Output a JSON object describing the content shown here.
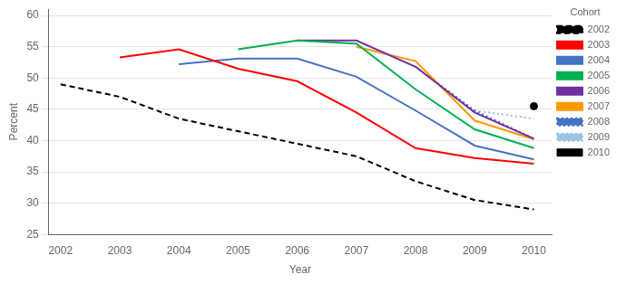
{
  "chart_data": {
    "type": "line",
    "xlabel": "Year",
    "ylabel": "Percent",
    "legend_title": "Cohort",
    "legend": "right",
    "grid": "y",
    "xlim": [
      2001.8,
      2010.3
    ],
    "ylim": [
      25,
      61
    ],
    "xticks": [
      2002,
      2003,
      2004,
      2005,
      2006,
      2007,
      2008,
      2009,
      2010
    ],
    "yticks": [
      25,
      30,
      35,
      40,
      45,
      50,
      55,
      60
    ],
    "series": [
      {
        "name": "2002",
        "color": "#000000",
        "line_style": "dashed",
        "x": [
          2002,
          2003,
          2004,
          2005,
          2006,
          2007,
          2008,
          2009,
          2010
        ],
        "values": [
          49.0,
          47.0,
          43.5,
          41.5,
          39.5,
          37.5,
          33.5,
          30.5,
          29.0
        ]
      },
      {
        "name": "2003",
        "color": "#ff0000",
        "line_style": "solid",
        "x": [
          2003,
          2004,
          2005,
          2006,
          2007,
          2008,
          2009,
          2010
        ],
        "values": [
          53.3,
          54.6,
          51.5,
          49.5,
          44.5,
          38.8,
          37.2,
          36.3
        ]
      },
      {
        "name": "2004",
        "color": "#4472c4",
        "line_style": "solid",
        "x": [
          2004,
          2005,
          2006,
          2007,
          2008,
          2009,
          2010
        ],
        "values": [
          52.2,
          53.1,
          53.1,
          50.2,
          44.8,
          39.2,
          37.0
        ]
      },
      {
        "name": "2005",
        "color": "#00b050",
        "line_style": "solid",
        "x": [
          2005,
          2006,
          2007,
          2008,
          2009,
          2010
        ],
        "values": [
          54.6,
          56.0,
          55.5,
          48.2,
          41.8,
          38.8
        ]
      },
      {
        "name": "2006",
        "color": "#7030a0",
        "line_style": "solid",
        "x": [
          2006,
          2007,
          2008,
          2009,
          2010
        ],
        "values": [
          56.0,
          56.0,
          51.8,
          44.5,
          40.3
        ]
      },
      {
        "name": "2007",
        "color": "#ff9900",
        "line_style": "solid",
        "x": [
          2007,
          2008,
          2009,
          2010
        ],
        "values": [
          55.0,
          52.7,
          43.2,
          40.2
        ]
      },
      {
        "name": "2008",
        "color": "#4472c4",
        "line_style": "dotted",
        "x": [
          2008,
          2009,
          2010
        ],
        "values": [
          51.8,
          44.8,
          40.3
        ]
      },
      {
        "name": "2009",
        "color": "#9dc3e6",
        "line_style": "dotted",
        "x": [
          2009,
          2010
        ],
        "values": [
          44.8,
          43.5
        ]
      },
      {
        "name": "2010",
        "color": "#000000",
        "line_style": "none",
        "marker": "circle",
        "x": [
          2010
        ],
        "values": [
          45.5
        ]
      }
    ]
  }
}
